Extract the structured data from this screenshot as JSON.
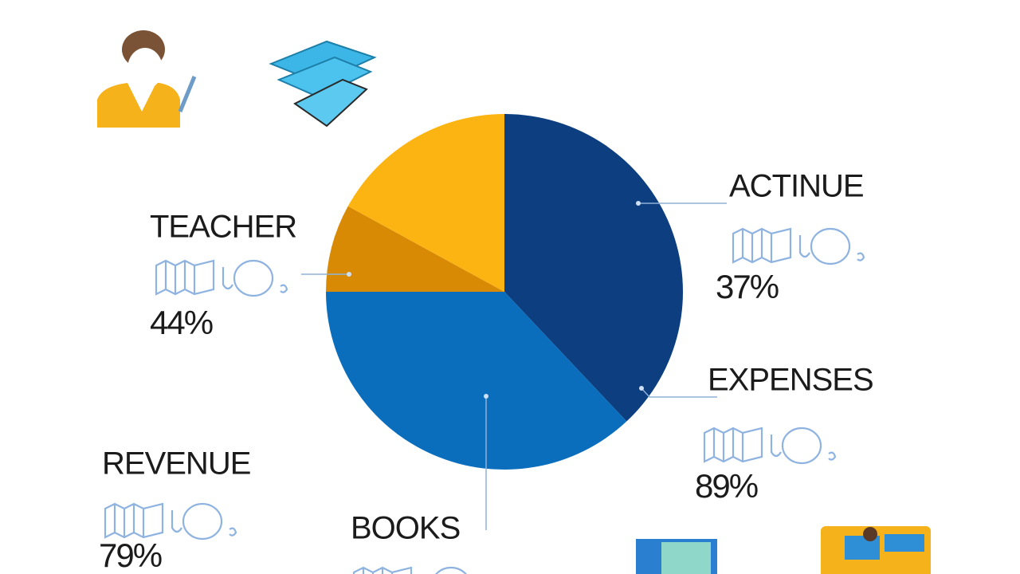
{
  "chart_data": {
    "type": "pie",
    "values": [
      38,
      37,
      8,
      17
    ],
    "colors": [
      "#0d3f80",
      "#0a6ebd",
      "#d98a04",
      "#fbb412"
    ]
  },
  "callouts": [
    {
      "label": "TEACHER",
      "value_label": "44%"
    },
    {
      "label": "ACTINUE",
      "value_label": "37%"
    },
    {
      "label": "EXPENSES",
      "value_label": "89%"
    },
    {
      "label": "REVENUE",
      "value_label": "79%"
    },
    {
      "label": "BOOKS"
    }
  ]
}
